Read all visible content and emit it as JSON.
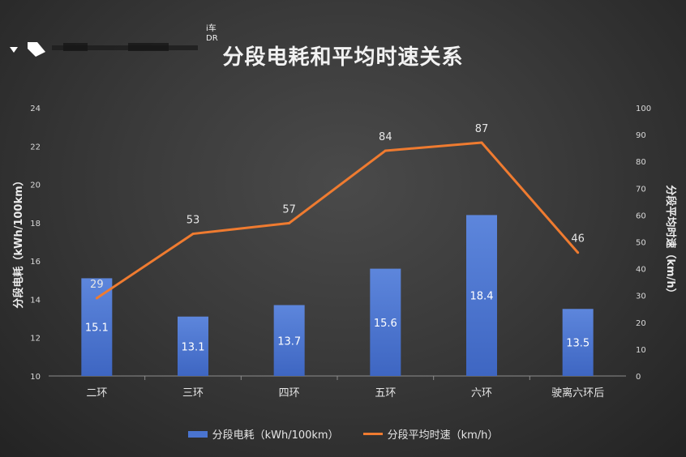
{
  "chart_data": {
    "type": "bar+line",
    "title": "分段电耗和平均时速关系",
    "categories": [
      "二环",
      "三环",
      "四环",
      "五环",
      "六环",
      "驶离六环后"
    ],
    "series": [
      {
        "name": "分段电耗（kWh/100km）",
        "type": "bar",
        "axis": "left",
        "values": [
          15.1,
          13.1,
          13.7,
          15.6,
          18.4,
          13.5
        ],
        "color": "#4a74d0"
      },
      {
        "name": "分段平均时速（km/h）",
        "type": "line",
        "axis": "right",
        "values": [
          29,
          53,
          57,
          84,
          87,
          46
        ],
        "color": "#ef7b30"
      }
    ],
    "ylabel_left": "分段电耗（kWh/100km）",
    "ylabel_right": "分段平均时速（km/h）",
    "ylim_left": [
      10,
      24
    ],
    "yticks_left": [
      10,
      12,
      14,
      16,
      18,
      20,
      22,
      24
    ],
    "ylim_right": [
      0,
      100
    ],
    "yticks_right": [
      0,
      10,
      20,
      30,
      40,
      50,
      60,
      70,
      80,
      90,
      100
    ],
    "grid": false,
    "legend": "bottom"
  },
  "logo": {
    "text_line1": "i车",
    "text_line2": "DR"
  }
}
